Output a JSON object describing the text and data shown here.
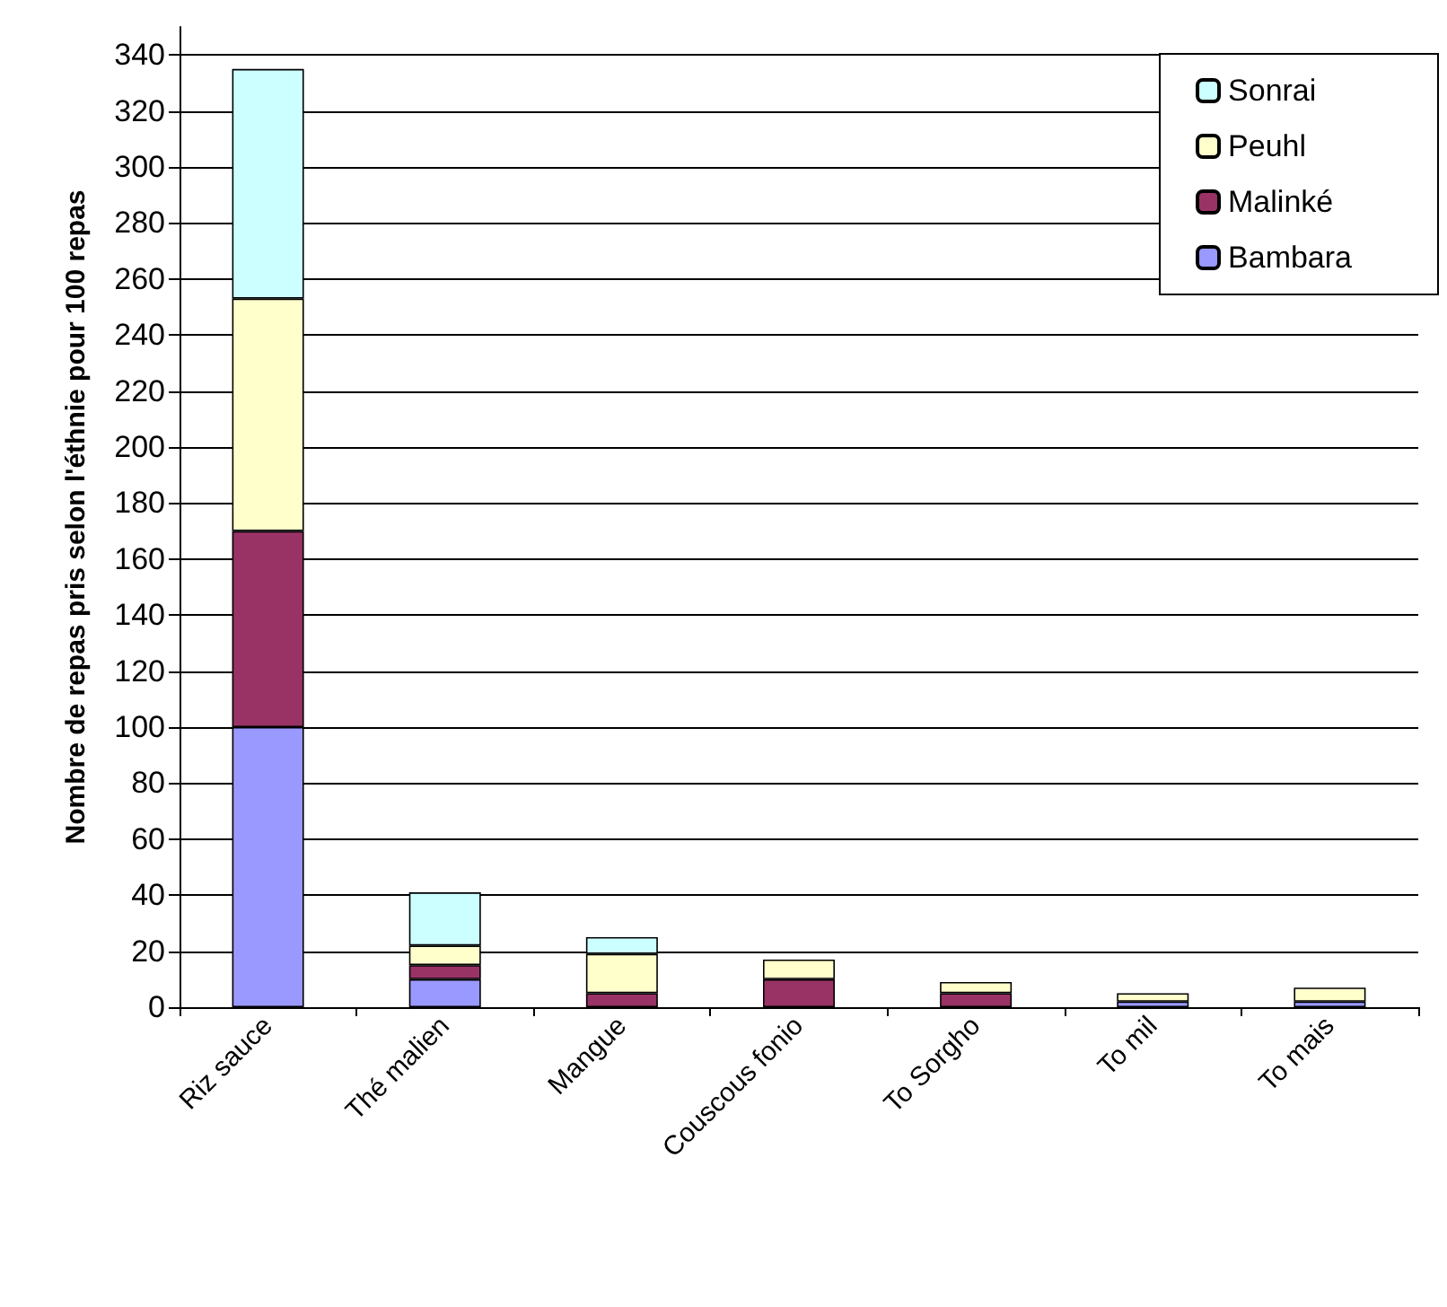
{
  "chart_data": {
    "type": "bar",
    "stacked": true,
    "ylabel": "Nombre de repas pris selon l'éthnie pour 100 repas",
    "categories": [
      "Riz sauce",
      "Thé malien",
      "Mangue",
      "Couscous fonio",
      "To Sorgho",
      "To mil",
      "To mais"
    ],
    "series": [
      {
        "name": "Bambara",
        "color": "#9999ff",
        "values": [
          100,
          10,
          0,
          0,
          0,
          2,
          2
        ]
      },
      {
        "name": "Malinké",
        "color": "#993366",
        "values": [
          70,
          5,
          5,
          10,
          5,
          0,
          0
        ]
      },
      {
        "name": "Peuhl",
        "color": "#ffffcc",
        "values": [
          83,
          7,
          14,
          7,
          4,
          3,
          5
        ]
      },
      {
        "name": "Sonrai",
        "color": "#ccffff",
        "values": [
          82,
          19,
          6,
          0,
          0,
          0,
          0
        ]
      }
    ],
    "ylim": [
      0,
      350
    ],
    "yticks": [
      0,
      20,
      40,
      60,
      80,
      100,
      120,
      140,
      160,
      180,
      200,
      220,
      240,
      260,
      280,
      300,
      320,
      340
    ],
    "grid": "y",
    "legend": "top right"
  }
}
